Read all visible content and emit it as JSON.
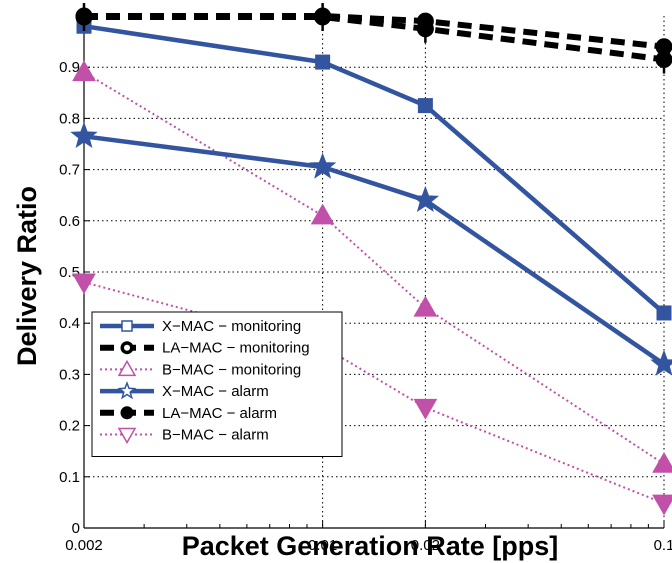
{
  "chart_data": {
    "type": "line",
    "xlabel": "Packet Generation Rate [pps]",
    "ylabel": "Delivery Ratio",
    "x_scale": "log",
    "x": [
      0.002,
      0.01,
      0.02,
      0.1
    ],
    "x_tick_labels": [
      "0.002",
      "0.01",
      "0.02",
      "0.1"
    ],
    "ylim": [
      0,
      1
    ],
    "y_ticks": [
      0,
      0.1,
      0.2,
      0.3,
      0.4,
      0.5,
      0.6,
      0.7,
      0.8,
      0.9
    ],
    "y_tick_labels": [
      "0",
      "0.1",
      "0.2",
      "0.3",
      "0.4",
      "0.5",
      "0.6",
      "0.7",
      "0.8",
      "0.9"
    ],
    "grid": true,
    "legend_position": "bottom-left",
    "series": [
      {
        "name": "X−MAC − monitoring",
        "values": [
          0.98,
          0.91,
          0.825,
          0.42
        ],
        "color": "#3355A0",
        "line": "solid",
        "marker": "square"
      },
      {
        "name": "LA−MAC − monitoring",
        "values": [
          1.0,
          1.0,
          0.99,
          0.94
        ],
        "color": "#000000",
        "line": "dashed",
        "marker": "circle"
      },
      {
        "name": "B−MAC − monitoring",
        "values": [
          0.89,
          0.61,
          0.43,
          0.125
        ],
        "color": "#C050A8",
        "line": "dotted",
        "marker": "triangle-up"
      },
      {
        "name": "X−MAC − alarm",
        "values": [
          0.765,
          0.705,
          0.64,
          0.32
        ],
        "color": "#3355A0",
        "line": "solid",
        "marker": "star"
      },
      {
        "name": "LA−MAC − alarm",
        "values": [
          0.998,
          0.998,
          0.975,
          0.915
        ],
        "color": "#000000",
        "line": "dashed",
        "marker": "x-circle"
      },
      {
        "name": "B−MAC − alarm",
        "values": [
          0.48,
          0.355,
          0.235,
          0.048
        ],
        "color": "#C050A8",
        "line": "dotted",
        "marker": "triangle-down"
      }
    ]
  }
}
